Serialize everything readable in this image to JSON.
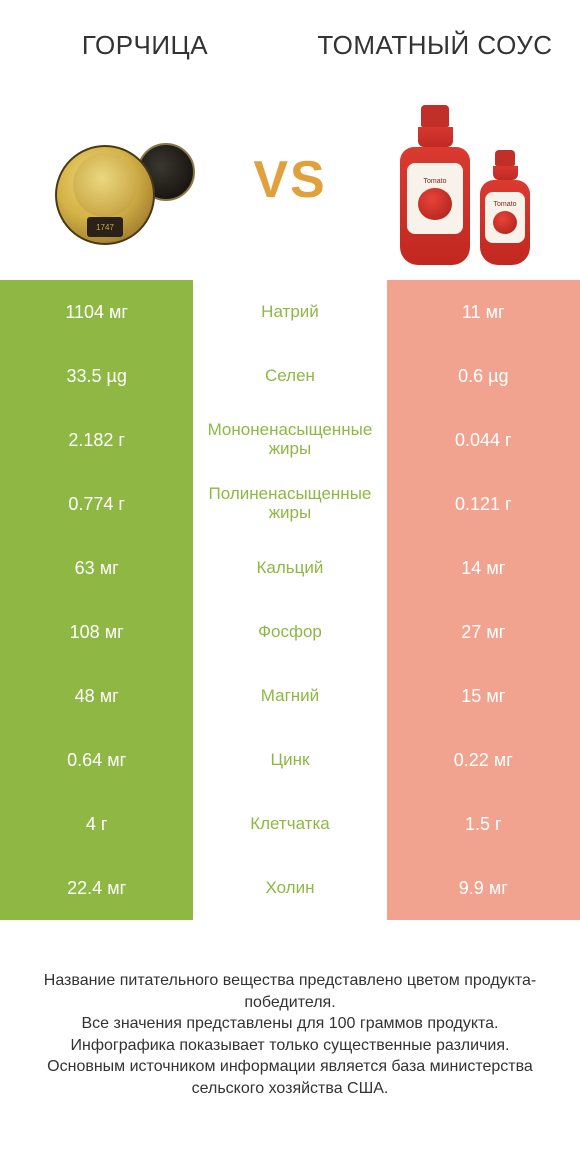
{
  "header": {
    "left_title": "ГОРЧИЦА",
    "right_title": "ТОМАТНЫЙ СОУС"
  },
  "vs_label": "VS",
  "colors": {
    "left_win": "#8eb843",
    "left_lose": "#c2d98a",
    "right_win": "#e86a4f",
    "right_lose": "#f2a38f",
    "mid_text_left": "#e86a4f",
    "mid_text_right": "#8eb843",
    "row_border": "#ffffff",
    "vs_color": "#e2a03c"
  },
  "nutrients": [
    {
      "name": "Натрий",
      "left": "1104 мг",
      "right": "11 мг",
      "winner": "left"
    },
    {
      "name": "Селен",
      "left": "33.5 µg",
      "right": "0.6 µg",
      "winner": "left"
    },
    {
      "name": "Мононенасыщенные жиры",
      "left": "2.182 г",
      "right": "0.044 г",
      "winner": "left"
    },
    {
      "name": "Полиненасыщенные жиры",
      "left": "0.774 г",
      "right": "0.121 г",
      "winner": "left"
    },
    {
      "name": "Кальций",
      "left": "63 мг",
      "right": "14 мг",
      "winner": "left"
    },
    {
      "name": "Фосфор",
      "left": "108 мг",
      "right": "27 мг",
      "winner": "left"
    },
    {
      "name": "Магний",
      "left": "48 мг",
      "right": "15 мг",
      "winner": "left"
    },
    {
      "name": "Цинк",
      "left": "0.64 мг",
      "right": "0.22 мг",
      "winner": "left"
    },
    {
      "name": "Клетчатка",
      "left": "4 г",
      "right": "1.5 г",
      "winner": "left"
    },
    {
      "name": "Холин",
      "left": "22.4 мг",
      "right": "9.9 мг",
      "winner": "left"
    }
  ],
  "footer_lines": [
    "Название питательного вещества представлено цветом продукта-победителя.",
    "Все значения представлены для 100 граммов продукта.",
    "Инфографика показывает только существенные различия.",
    "Основным источником информации является база министерства сельского хозяйства США."
  ],
  "jar_year": "1747",
  "bottle_label_text": "Tomato"
}
